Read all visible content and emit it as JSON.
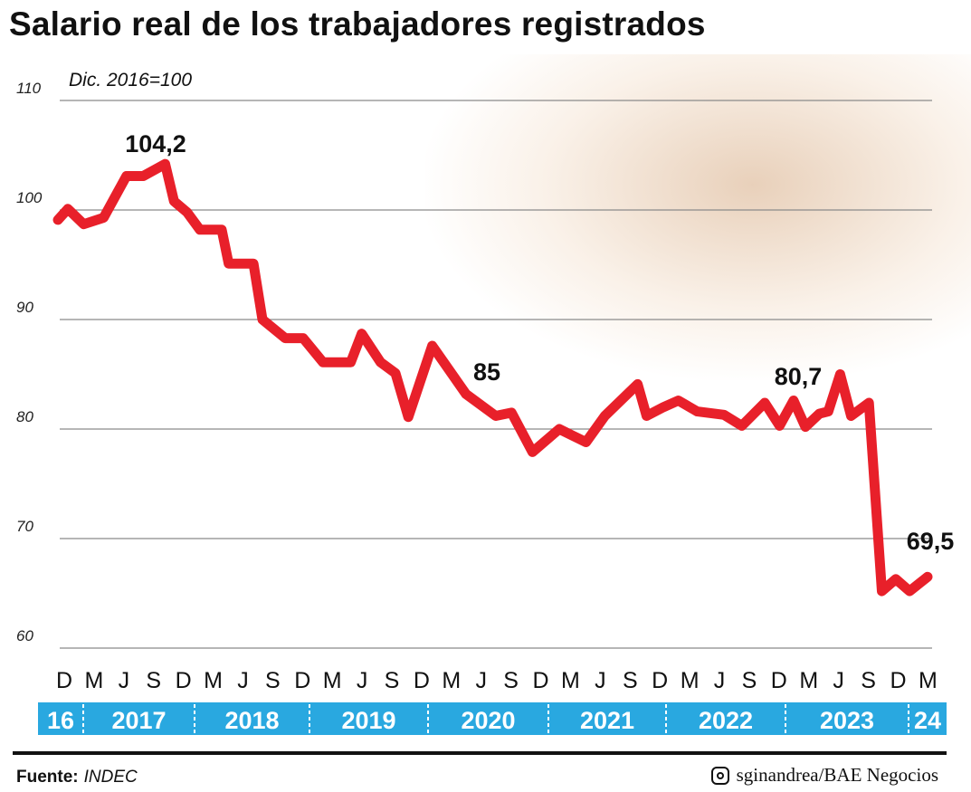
{
  "chart_data": {
    "type": "line",
    "title": "Salario real de los trabajadores registrados",
    "subtitle": "Dic. 2016=100",
    "xlabel": "",
    "ylabel": "",
    "ylim": [
      60,
      110
    ],
    "yticks": [
      60,
      70,
      80,
      90,
      100,
      110
    ],
    "ytick_labels": [
      "60",
      "70",
      "80",
      "90",
      "100",
      "110"
    ],
    "grid": true,
    "x_unit": "months since Dec 2016",
    "xlim": [
      0,
      87
    ],
    "month_ticks": [
      "D",
      "M",
      "J",
      "S",
      "D",
      "M",
      "J",
      "S",
      "D",
      "M",
      "J",
      "S",
      "D",
      "M",
      "J",
      "S",
      "D",
      "M",
      "J",
      "S",
      "D",
      "M",
      "J",
      "S",
      "D",
      "M",
      "J",
      "S",
      "D",
      "M"
    ],
    "year_labels": [
      "16",
      "2017",
      "2018",
      "2019",
      "2020",
      "2021",
      "2022",
      "2023",
      "24"
    ],
    "series": [
      {
        "name": "Salario real",
        "color": "#e8202a",
        "points": [
          [
            0,
            99.1
          ],
          [
            1,
            100.1
          ],
          [
            2.6,
            98.7
          ],
          [
            4.6,
            99.3
          ],
          [
            6.9,
            103.1
          ],
          [
            8.6,
            103.1
          ],
          [
            10.8,
            104.2
          ],
          [
            11.7,
            100.8
          ],
          [
            13,
            99.8
          ],
          [
            14.3,
            98.2
          ],
          [
            16.5,
            98.2
          ],
          [
            17.2,
            95.1
          ],
          [
            19.7,
            95.1
          ],
          [
            20.6,
            90
          ],
          [
            22.9,
            88.3
          ],
          [
            24.7,
            88.3
          ],
          [
            26.7,
            86.1
          ],
          [
            29.5,
            86.1
          ],
          [
            30.6,
            88.7
          ],
          [
            32.5,
            86.1
          ],
          [
            34,
            85.1
          ],
          [
            35.3,
            81.1
          ],
          [
            37.7,
            87.6
          ],
          [
            41.1,
            83.2
          ],
          [
            44.1,
            81.2
          ],
          [
            45.7,
            81.5
          ],
          [
            47.8,
            77.9
          ],
          [
            50.5,
            80
          ],
          [
            53.2,
            78.8
          ],
          [
            55.1,
            81.2
          ],
          [
            58.4,
            84.1
          ],
          [
            59.3,
            81.2
          ],
          [
            61,
            82
          ],
          [
            62.5,
            82.6
          ],
          [
            64.4,
            81.6
          ],
          [
            67.1,
            81.3
          ],
          [
            68.9,
            80.3
          ],
          [
            71.2,
            82.4
          ],
          [
            72.7,
            80.3
          ],
          [
            74.1,
            82.6
          ],
          [
            75.3,
            80.2
          ],
          [
            76.7,
            81.4
          ],
          [
            77.6,
            81.6
          ],
          [
            78.8,
            85
          ],
          [
            79.9,
            81.2
          ],
          [
            81.7,
            82.4
          ],
          [
            83,
            65.2
          ],
          [
            84.4,
            66.3
          ],
          [
            85.8,
            65.2
          ],
          [
            87.6,
            66.5
          ]
        ]
      }
    ],
    "annotations": [
      {
        "text": "104,2",
        "x": 10.8,
        "y": 104.2
      },
      {
        "text": "85",
        "x": 42,
        "y": 85
      },
      {
        "text": "80,7",
        "x": 74,
        "y": 80.7
      },
      {
        "text": "69,5",
        "x": 86,
        "y": 69.5
      }
    ]
  },
  "footer": {
    "source_label": "Fuente:",
    "source_value": "INDEC",
    "credit": "sginandrea/BAE Negocios"
  },
  "colors": {
    "line": "#e8202a",
    "band": "#29a8e0",
    "grid": "#8a8a8a"
  }
}
